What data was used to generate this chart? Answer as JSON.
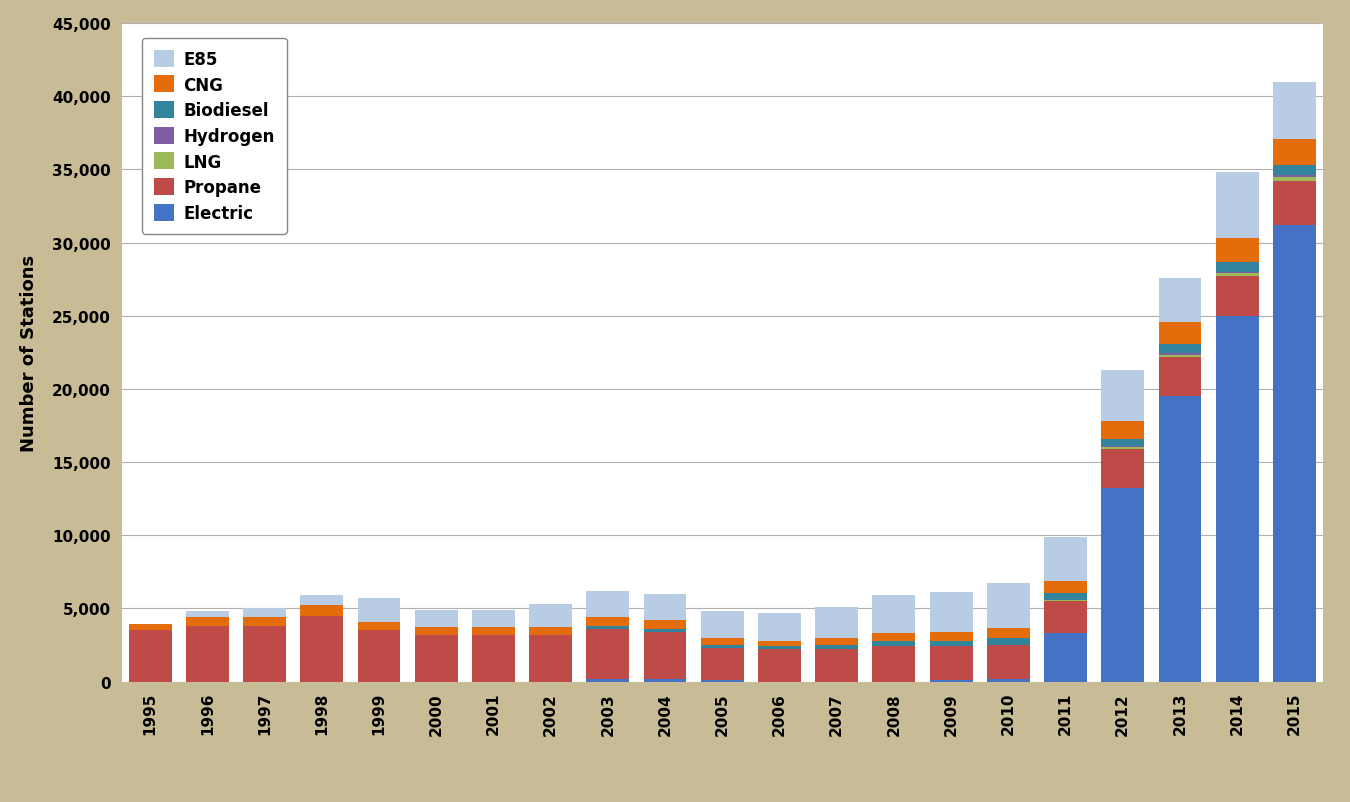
{
  "years": [
    1995,
    1996,
    1997,
    1998,
    1999,
    2000,
    2001,
    2002,
    2003,
    2004,
    2005,
    2006,
    2007,
    2008,
    2009,
    2010,
    2011,
    2012,
    2013,
    2014,
    2015
  ],
  "series": {
    "Electric": [
      0,
      0,
      0,
      0,
      0,
      0,
      0,
      0,
      200,
      200,
      100,
      0,
      0,
      0,
      100,
      200,
      3300,
      13200,
      19500,
      25000,
      31200
    ],
    "Propane": [
      3500,
      3800,
      3800,
      4500,
      3500,
      3200,
      3200,
      3200,
      3400,
      3200,
      2200,
      2200,
      2200,
      2400,
      2300,
      2300,
      2200,
      2700,
      2700,
      2700,
      3000
    ],
    "LNG": [
      0,
      0,
      0,
      0,
      0,
      0,
      0,
      0,
      0,
      0,
      0,
      0,
      0,
      0,
      0,
      0,
      50,
      100,
      150,
      200,
      300
    ],
    "Hydrogen": [
      0,
      0,
      0,
      0,
      0,
      0,
      0,
      0,
      0,
      0,
      0,
      0,
      0,
      0,
      0,
      0,
      50,
      100,
      100,
      100,
      100
    ],
    "Biodiesel": [
      0,
      0,
      0,
      0,
      0,
      0,
      0,
      0,
      200,
      200,
      200,
      200,
      300,
      350,
      400,
      450,
      450,
      500,
      600,
      700,
      700
    ],
    "CNG": [
      400,
      600,
      600,
      700,
      600,
      500,
      500,
      500,
      600,
      600,
      500,
      400,
      500,
      550,
      600,
      700,
      800,
      1200,
      1500,
      1600,
      1800
    ],
    "E85": [
      0,
      400,
      600,
      700,
      1600,
      1200,
      1200,
      1600,
      1800,
      1800,
      1800,
      1900,
      2100,
      2600,
      2700,
      3100,
      3000,
      3500,
      3000,
      4500,
      3900
    ]
  },
  "colors": {
    "Electric": "#4472C4",
    "Propane": "#BE4B48",
    "LNG": "#9BBB59",
    "Hydrogen": "#7F5EA3",
    "Biodiesel": "#31849B",
    "CNG": "#E46C0A",
    "E85": "#B8CCE4"
  },
  "ylabel": "Number of Stations",
  "ylim": [
    0,
    45000
  ],
  "yticks": [
    0,
    5000,
    10000,
    15000,
    20000,
    25000,
    30000,
    35000,
    40000,
    45000
  ],
  "background_color": "#C8BC96",
  "plot_background": "#FFFFFF",
  "legend_order": [
    "E85",
    "CNG",
    "Biodiesel",
    "Hydrogen",
    "LNG",
    "Propane",
    "Electric"
  ]
}
